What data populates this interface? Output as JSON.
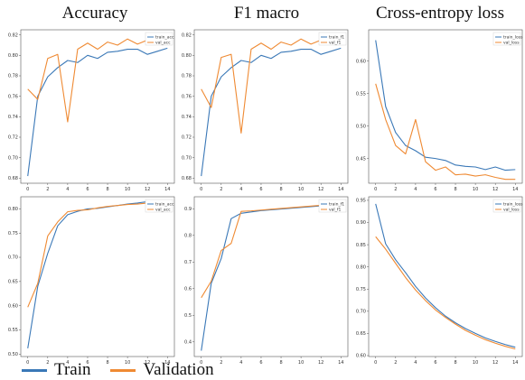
{
  "column_titles": [
    "Accuracy",
    "F1 macro",
    "Cross-entropy loss"
  ],
  "legend": {
    "train": "Train",
    "validation": "Validation"
  },
  "colors": {
    "train": "#3a78b7",
    "validation": "#ef8a33"
  },
  "chart_data": [
    {
      "type": "line",
      "panel": "top-left",
      "x": [
        0,
        1,
        2,
        3,
        4,
        5,
        6,
        7,
        8,
        9,
        10,
        11,
        12,
        13,
        14
      ],
      "xticks": [
        0,
        2,
        4,
        6,
        8,
        10,
        12,
        14
      ],
      "xlim": [
        -0.7,
        14.7
      ],
      "yticks": [
        0.68,
        0.7,
        0.72,
        0.74,
        0.76,
        0.78,
        0.8,
        0.82
      ],
      "ytick_labels": [
        "0.68",
        "0.70",
        "0.72",
        "0.74",
        "0.76",
        "0.78",
        "0.80",
        "0.82"
      ],
      "ylim": [
        0.675,
        0.825
      ],
      "series": [
        {
          "name": "train_acc",
          "values": [
            0.682,
            0.76,
            0.779,
            0.788,
            0.795,
            0.793,
            0.8,
            0.797,
            0.803,
            0.804,
            0.806,
            0.806,
            0.801,
            0.804,
            0.807
          ]
        },
        {
          "name": "val_acc",
          "values": [
            0.767,
            0.757,
            0.797,
            0.801,
            0.735,
            0.806,
            0.812,
            0.806,
            0.813,
            0.81,
            0.816,
            0.811,
            0.815,
            0.815,
            0.816
          ]
        }
      ]
    },
    {
      "type": "line",
      "panel": "top-middle",
      "x": [
        0,
        1,
        2,
        3,
        4,
        5,
        6,
        7,
        8,
        9,
        10,
        11,
        12,
        13,
        14
      ],
      "xticks": [
        0,
        2,
        4,
        6,
        8,
        10,
        12,
        14
      ],
      "xlim": [
        -0.7,
        14.7
      ],
      "yticks": [
        0.68,
        0.7,
        0.72,
        0.74,
        0.76,
        0.78,
        0.8,
        0.82
      ],
      "ytick_labels": [
        "0.68",
        "0.70",
        "0.72",
        "0.74",
        "0.76",
        "0.78",
        "0.80",
        "0.82"
      ],
      "ylim": [
        0.675,
        0.825
      ],
      "series": [
        {
          "name": "train_f1",
          "values": [
            0.682,
            0.76,
            0.779,
            0.788,
            0.795,
            0.793,
            0.8,
            0.797,
            0.803,
            0.804,
            0.806,
            0.806,
            0.801,
            0.804,
            0.807
          ]
        },
        {
          "name": "val_f1",
          "values": [
            0.767,
            0.749,
            0.798,
            0.801,
            0.724,
            0.806,
            0.812,
            0.806,
            0.813,
            0.81,
            0.816,
            0.811,
            0.815,
            0.815,
            0.816
          ]
        }
      ]
    },
    {
      "type": "line",
      "panel": "top-right",
      "x": [
        0,
        1,
        2,
        3,
        4,
        5,
        6,
        7,
        8,
        9,
        10,
        11,
        12,
        13,
        14
      ],
      "xticks": [
        0,
        2,
        4,
        6,
        8,
        10,
        12,
        14
      ],
      "xlim": [
        -0.7,
        14.7
      ],
      "yticks": [
        0.45,
        0.5,
        0.55,
        0.6
      ],
      "ytick_labels": [
        "0.45",
        "0.50",
        "0.55",
        "0.60"
      ],
      "ylim": [
        0.412,
        0.648
      ],
      "series": [
        {
          "name": "train_loss",
          "values": [
            0.632,
            0.53,
            0.49,
            0.47,
            0.462,
            0.452,
            0.45,
            0.447,
            0.44,
            0.438,
            0.437,
            0.433,
            0.437,
            0.432,
            0.433
          ]
        },
        {
          "name": "val_loss",
          "values": [
            0.565,
            0.51,
            0.47,
            0.457,
            0.51,
            0.445,
            0.432,
            0.437,
            0.425,
            0.426,
            0.423,
            0.425,
            0.421,
            0.418,
            0.418
          ]
        }
      ]
    },
    {
      "type": "line",
      "panel": "bottom-left",
      "x": [
        0,
        1,
        2,
        3,
        4,
        5,
        6,
        7,
        8,
        9,
        10,
        11,
        12,
        13,
        14
      ],
      "xticks": [
        0,
        2,
        4,
        6,
        8,
        10,
        12,
        14
      ],
      "xlim": [
        -0.7,
        14.7
      ],
      "yticks": [
        0.5,
        0.55,
        0.6,
        0.65,
        0.7,
        0.75,
        0.8
      ],
      "ytick_labels": [
        "0.50",
        "0.55",
        "0.60",
        "0.65",
        "0.70",
        "0.75",
        "0.80"
      ],
      "ylim": [
        0.495,
        0.825
      ],
      "series": [
        {
          "name": "train_acc",
          "values": [
            0.512,
            0.64,
            0.708,
            0.765,
            0.788,
            0.795,
            0.8,
            0.801,
            0.804,
            0.807,
            0.81,
            0.812,
            0.815,
            0.816,
            0.818
          ]
        },
        {
          "name": "val_acc",
          "values": [
            0.597,
            0.646,
            0.744,
            0.773,
            0.794,
            0.797,
            0.798,
            0.802,
            0.805,
            0.807,
            0.809,
            0.81,
            0.812,
            0.814,
            0.816
          ]
        }
      ]
    },
    {
      "type": "line",
      "panel": "bottom-middle",
      "x": [
        0,
        1,
        2,
        3,
        4,
        5,
        6,
        7,
        8,
        9,
        10,
        11,
        12,
        13,
        14
      ],
      "xticks": [
        0,
        2,
        4,
        6,
        8,
        10,
        12,
        14
      ],
      "xlim": [
        -0.7,
        14.7
      ],
      "yticks": [
        0.4,
        0.5,
        0.6,
        0.7,
        0.8,
        0.9
      ],
      "ytick_labels": [
        "0.4",
        "0.5",
        "0.6",
        "0.7",
        "0.8",
        "0.9"
      ],
      "ylim": [
        0.345,
        0.945
      ],
      "series": [
        {
          "name": "train_f1",
          "values": [
            0.367,
            0.62,
            0.713,
            0.863,
            0.883,
            0.888,
            0.893,
            0.896,
            0.899,
            0.902,
            0.905,
            0.908,
            0.911,
            0.914,
            0.917
          ]
        },
        {
          "name": "val_f1",
          "values": [
            0.566,
            0.628,
            0.743,
            0.77,
            0.89,
            0.892,
            0.895,
            0.898,
            0.901,
            0.904,
            0.907,
            0.91,
            0.913,
            0.916,
            0.918
          ]
        }
      ]
    },
    {
      "type": "line",
      "panel": "bottom-right",
      "x": [
        0,
        1,
        2,
        3,
        4,
        5,
        6,
        7,
        8,
        9,
        10,
        11,
        12,
        13,
        14
      ],
      "xticks": [
        0,
        2,
        4,
        6,
        8,
        10,
        12,
        14
      ],
      "xlim": [
        -0.7,
        14.7
      ],
      "yticks": [
        0.6,
        0.65,
        0.7,
        0.75,
        0.8,
        0.85,
        0.9,
        0.95
      ],
      "ytick_labels": [
        "0.60",
        "0.65",
        "0.70",
        "0.75",
        "0.80",
        "0.85",
        "0.90",
        "0.95"
      ],
      "ylim": [
        0.598,
        0.958
      ],
      "series": [
        {
          "name": "train_loss",
          "values": [
            0.942,
            0.852,
            0.816,
            0.787,
            0.756,
            0.73,
            0.708,
            0.689,
            0.674,
            0.661,
            0.65,
            0.64,
            0.632,
            0.625,
            0.619
          ]
        },
        {
          "name": "val_loss",
          "values": [
            0.868,
            0.84,
            0.808,
            0.776,
            0.748,
            0.724,
            0.703,
            0.686,
            0.671,
            0.657,
            0.646,
            0.636,
            0.628,
            0.621,
            0.615
          ]
        }
      ]
    }
  ]
}
